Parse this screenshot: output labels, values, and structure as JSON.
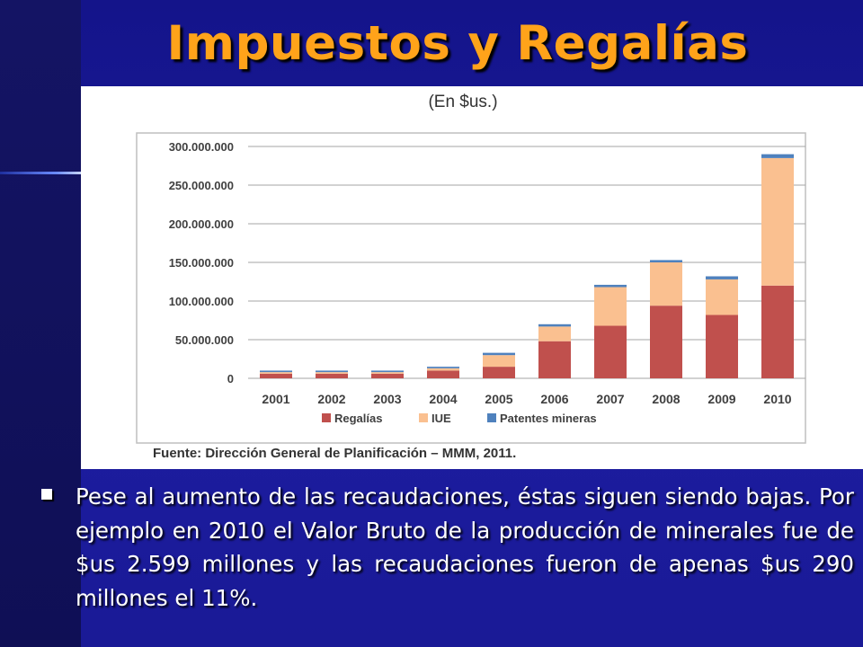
{
  "slide": {
    "title": "Impuestos y Regalías",
    "bullet": "Pese al aumento de las recaudaciones, éstas siguen siendo bajas. Por ejemplo en 2010 el Valor Bruto de la producción de minerales fue de $us 2.599 millones y las recaudaciones fueron de apenas $us 290 millones el 11%.",
    "colors": {
      "title": "#ffa31a",
      "background": "#1a1a8a"
    }
  },
  "chart_data": {
    "type": "bar",
    "stacked": true,
    "title": "(En $us.)",
    "source": "Fuente: Dirección General de Planificación – MMM, 2011.",
    "categories": [
      "2001",
      "2002",
      "2003",
      "2004",
      "2005",
      "2006",
      "2007",
      "2008",
      "2009",
      "2010"
    ],
    "series": [
      {
        "name": "Regalías",
        "color": "#c0504d",
        "values": [
          6000000,
          6000000,
          6000000,
          10000000,
          15000000,
          48000000,
          68000000,
          94000000,
          82000000,
          120000000
        ]
      },
      {
        "name": "IUE",
        "color": "#fac090",
        "values": [
          2000000,
          2000000,
          2000000,
          3000000,
          15000000,
          19000000,
          50000000,
          56000000,
          46000000,
          165000000
        ]
      },
      {
        "name": "Patentes mineras",
        "color": "#4f81bd",
        "values": [
          2000000,
          2000000,
          2000000,
          2000000,
          3000000,
          3000000,
          3000000,
          3000000,
          4000000,
          5000000
        ]
      }
    ],
    "yticks": [
      "0",
      "50.000.000",
      "100.000.000",
      "150.000.000",
      "200.000.000",
      "250.000.000",
      "300.000.000"
    ],
    "ylim": [
      0,
      300000000
    ],
    "grid": true,
    "legend_position": "bottom"
  }
}
